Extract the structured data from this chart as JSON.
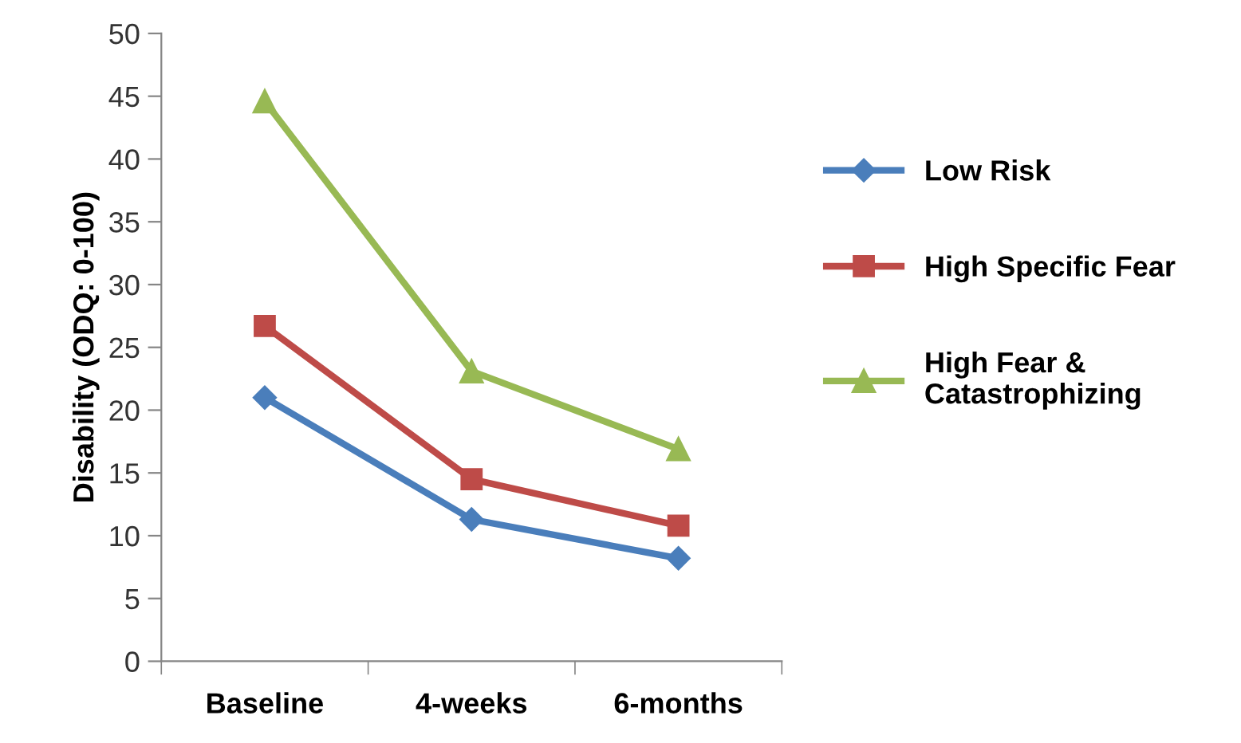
{
  "chart_data": {
    "type": "line",
    "ylabel": "Disability (ODQ: 0-100)",
    "categories": [
      "Baseline",
      "4-weeks",
      "6-months"
    ],
    "series": [
      {
        "name": "Low Risk",
        "color": "#4a7ebb",
        "marker": "diamond",
        "values": [
          21.0,
          11.3,
          8.2
        ]
      },
      {
        "name": "High Specific Fear",
        "color": "#be4b48",
        "marker": "square",
        "values": [
          26.7,
          14.5,
          10.8
        ]
      },
      {
        "name": "High Fear &\nCatastrophizing",
        "color": "#98b954",
        "marker": "triangle",
        "values": [
          44.6,
          23.1,
          16.9
        ]
      }
    ],
    "ylim": [
      0,
      50
    ],
    "yticks": [
      0,
      5,
      10,
      15,
      20,
      25,
      30,
      35,
      40,
      45,
      50
    ],
    "grid": false,
    "legend": "right",
    "line_style": "solid"
  }
}
